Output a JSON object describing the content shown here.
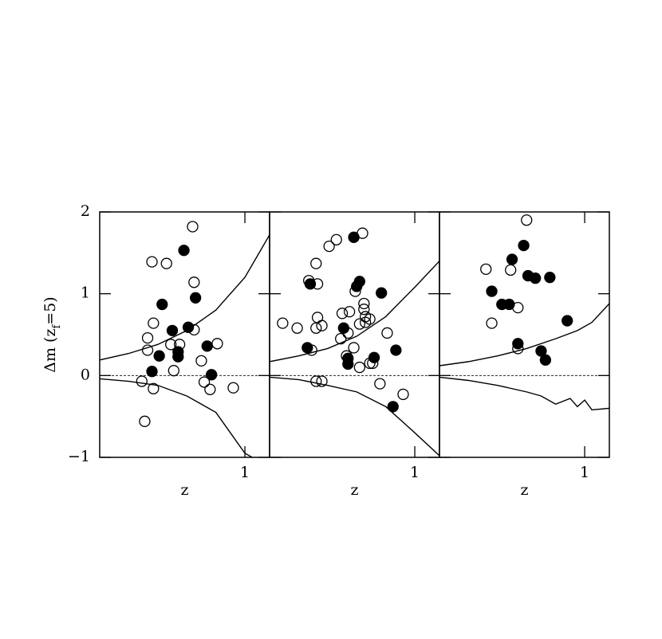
{
  "chart_data": [
    {
      "type": "scatter",
      "xlabel": "z",
      "ylabel": [
        "Δm (z",
        "f",
        "=5)"
      ],
      "xlim": [
        0,
        1.17
      ],
      "ylim": [
        -1,
        2
      ],
      "xticks": [
        1
      ],
      "yticks": [
        {
          "value": -1,
          "label": "−1"
        },
        0,
        1,
        2
      ],
      "ytick_labels": true,
      "reference_y": 0,
      "color": "#000",
      "series": [
        {
          "marker": "open",
          "x": [
            0.64,
            0.36,
            0.46,
            0.65,
            0.37,
            0.33,
            0.33,
            0.29,
            0.37,
            0.31,
            0.51,
            0.49,
            0.55,
            0.65,
            0.7,
            0.72,
            0.76,
            0.81,
            0.92
          ],
          "y": [
            1.82,
            1.39,
            1.37,
            1.14,
            0.64,
            0.46,
            0.31,
            -0.07,
            -0.16,
            -0.56,
            0.06,
            0.38,
            0.38,
            0.56,
            0.18,
            -0.08,
            -0.17,
            0.39,
            -0.15
          ]
        },
        {
          "marker": "filled",
          "x": [
            0.58,
            0.43,
            0.66,
            0.41,
            0.36,
            0.54,
            0.54,
            0.61,
            0.74,
            0.77,
            0.5
          ],
          "y": [
            1.53,
            0.87,
            0.95,
            0.24,
            0.05,
            0.29,
            0.23,
            0.59,
            0.36,
            0.01,
            0.55
          ]
        },
        {
          "marker": "line",
          "x": [
            0,
            0.2,
            0.4,
            0.6,
            0.8,
            1.0,
            1.17
          ],
          "y": [
            0.19,
            0.27,
            0.38,
            0.55,
            0.8,
            1.2,
            1.72
          ]
        },
        {
          "marker": "line",
          "x": [
            0,
            0.2,
            0.4,
            0.6,
            0.8,
            0.9,
            1.0,
            1.05
          ],
          "y": [
            -0.04,
            -0.07,
            -0.12,
            -0.25,
            -0.45,
            -0.7,
            -0.95,
            -1.0
          ]
        }
      ]
    },
    {
      "type": "scatter",
      "xlabel": "z",
      "xlim": [
        0,
        1.17
      ],
      "ylim": [
        -1,
        2
      ],
      "xticks": [
        1
      ],
      "yticks": [
        -1,
        0,
        1,
        2
      ],
      "ytick_labels": false,
      "reference_y": 0,
      "color": "#000",
      "series": [
        {
          "marker": "open",
          "x": [
            0.64,
            0.46,
            0.41,
            0.32,
            0.27,
            0.33,
            0.59,
            0.09,
            0.19,
            0.32,
            0.36,
            0.33,
            0.5,
            0.55,
            0.65,
            0.65,
            0.66,
            0.69,
            0.62,
            0.54,
            0.49,
            0.29,
            0.81,
            0.58,
            0.53,
            0.69,
            0.71,
            0.62,
            0.32,
            0.36,
            0.76,
            0.92,
            0.66
          ],
          "y": [
            1.74,
            1.66,
            1.58,
            1.37,
            1.16,
            1.12,
            1.03,
            0.64,
            0.58,
            0.58,
            0.61,
            0.71,
            0.76,
            0.78,
            0.88,
            0.81,
            0.65,
            0.69,
            0.63,
            0.52,
            0.45,
            0.31,
            0.52,
            0.34,
            0.24,
            0.15,
            0.15,
            0.1,
            -0.07,
            -0.07,
            -0.1,
            -0.23,
            0.72
          ]
        },
        {
          "marker": "filled",
          "x": [
            0.58,
            0.62,
            0.28,
            0.77,
            0.87,
            0.85,
            0.26,
            0.51,
            0.54,
            0.54,
            0.72,
            0.6
          ],
          "y": [
            1.69,
            1.15,
            1.12,
            1.01,
            0.31,
            -0.38,
            0.34,
            0.58,
            0.21,
            0.14,
            0.22,
            1.09
          ]
        },
        {
          "marker": "line",
          "x": [
            0,
            0.2,
            0.4,
            0.6,
            0.8,
            1.0,
            1.17
          ],
          "y": [
            0.17,
            0.24,
            0.33,
            0.48,
            0.72,
            1.08,
            1.4
          ]
        },
        {
          "marker": "line",
          "x": [
            0,
            0.2,
            0.4,
            0.6,
            0.8,
            1.0,
            1.17
          ],
          "y": [
            -0.02,
            -0.05,
            -0.12,
            -0.2,
            -0.38,
            -0.7,
            -0.98
          ]
        }
      ]
    },
    {
      "type": "scatter",
      "xlabel": "z",
      "xlim": [
        0,
        1.17
      ],
      "ylim": [
        -1,
        2
      ],
      "xticks": [
        1
      ],
      "yticks": [
        -1,
        0,
        1,
        2
      ],
      "ytick_labels": false,
      "reference_y": 0,
      "color": "#000",
      "series": [
        {
          "marker": "open",
          "x": [
            0.6,
            0.32,
            0.49,
            0.36,
            0.54,
            0.54
          ],
          "y": [
            1.9,
            1.3,
            1.29,
            0.64,
            0.83,
            0.33
          ]
        },
        {
          "marker": "filled",
          "x": [
            0.58,
            0.5,
            0.36,
            0.43,
            0.61,
            0.66,
            0.76,
            0.88,
            0.48,
            0.54,
            0.7,
            0.73
          ],
          "y": [
            1.59,
            1.42,
            1.03,
            0.87,
            1.22,
            1.19,
            1.2,
            0.67,
            0.87,
            0.39,
            0.3,
            0.19
          ]
        },
        {
          "marker": "line",
          "x": [
            0,
            0.2,
            0.4,
            0.6,
            0.8,
            0.95,
            1.05,
            1.17
          ],
          "y": [
            0.12,
            0.17,
            0.24,
            0.33,
            0.45,
            0.55,
            0.65,
            0.88
          ]
        },
        {
          "marker": "line",
          "x": [
            0,
            0.2,
            0.4,
            0.6,
            0.7,
            0.8,
            0.9,
            0.95,
            1.0,
            1.05,
            1.17
          ],
          "y": [
            -0.02,
            -0.06,
            -0.12,
            -0.2,
            -0.25,
            -0.35,
            -0.28,
            -0.38,
            -0.3,
            -0.42,
            -0.4
          ]
        }
      ]
    }
  ]
}
